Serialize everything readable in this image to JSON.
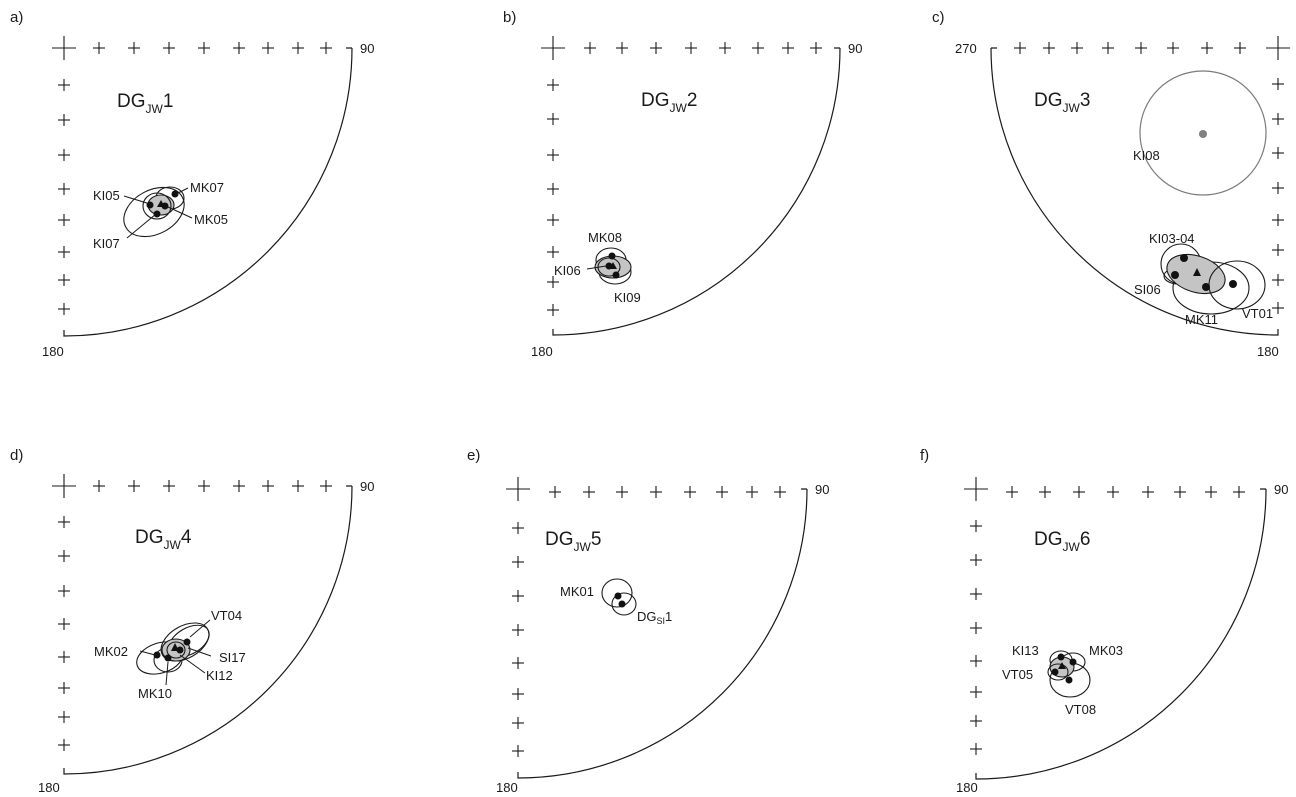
{
  "panels": [
    {
      "letter": "a)",
      "title_main": "DG",
      "title_sub": "JW",
      "title_num": "1",
      "edge_top": "90",
      "edge_bottom": "180",
      "sites": [
        "KI05",
        "MK07",
        "MK05",
        "KI07"
      ]
    },
    {
      "letter": "b)",
      "title_main": "DG",
      "title_sub": "JW",
      "title_num": "2",
      "edge_top": "90",
      "edge_bottom": "180",
      "sites": [
        "MK08",
        "KI06",
        "KI09"
      ]
    },
    {
      "letter": "c)",
      "title_main": "DG",
      "title_sub": "JW",
      "title_num": "3",
      "edge_top": "270",
      "edge_bottom": "180",
      "sites": [
        "KI08",
        "KI03-04",
        "SI06",
        "MK11",
        "VT01"
      ]
    },
    {
      "letter": "d)",
      "title_main": "DG",
      "title_sub": "JW",
      "title_num": "4",
      "edge_top": "90",
      "edge_bottom": "180",
      "sites": [
        "VT04",
        "MK02",
        "SI17",
        "KI12",
        "MK10"
      ]
    },
    {
      "letter": "e)",
      "title_main": "DG",
      "title_sub": "JW",
      "title_num": "5",
      "edge_top": "90",
      "edge_bottom": "180",
      "sites": [
        "MK01",
        "DG",
        "SI",
        "1"
      ]
    },
    {
      "letter": "f)",
      "title_main": "DG",
      "title_sub": "JW",
      "title_num": "6",
      "edge_top": "90",
      "edge_bottom": "180",
      "sites": [
        "KI13",
        "MK03",
        "VT05",
        "VT08"
      ]
    }
  ]
}
